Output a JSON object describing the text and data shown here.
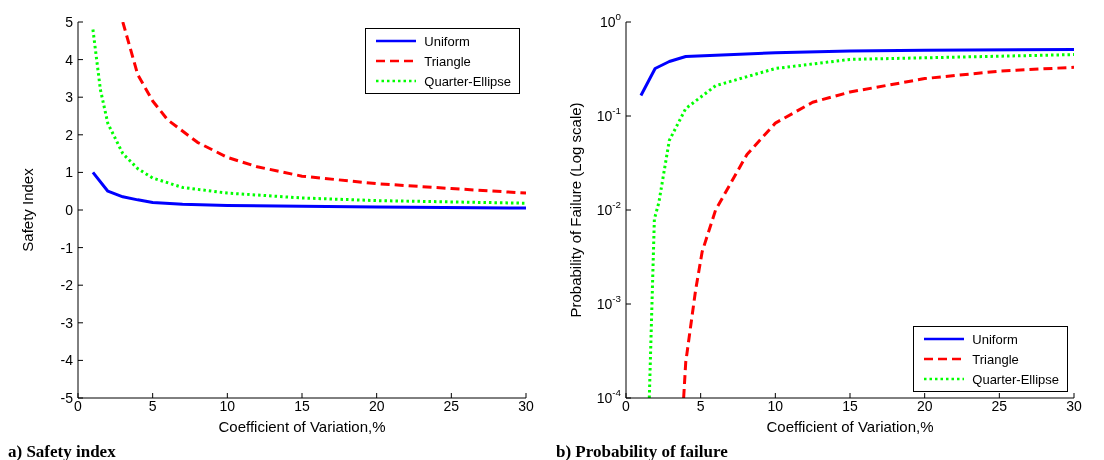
{
  "chart_data": [
    {
      "type": "line",
      "title": "a) Safety index",
      "xlabel": "Coefficient of Variation,%",
      "ylabel": "Safety Index",
      "xlim": [
        0,
        30
      ],
      "xticks": [
        0,
        5,
        10,
        15,
        20,
        25,
        30
      ],
      "ylim": [
        -5,
        5
      ],
      "yticks": [
        -5,
        -4,
        -3,
        -2,
        -1,
        0,
        1,
        2,
        3,
        4,
        5
      ],
      "grid": false,
      "legend": "top right",
      "series": [
        {
          "name": "Uniform",
          "color": "#0000ff",
          "line_style": "solid",
          "x": [
            1,
            2,
            3,
            4,
            5,
            7,
            10,
            15,
            20,
            30
          ],
          "values": [
            1.0,
            0.5,
            0.35,
            0.27,
            0.2,
            0.15,
            0.12,
            0.1,
            0.08,
            0.05
          ]
        },
        {
          "name": "Triangle",
          "color": "#ff0000",
          "line_style": "dashed",
          "x": [
            3,
            4,
            5,
            6,
            8,
            10,
            12,
            15,
            20,
            25,
            30
          ],
          "values": [
            5,
            3.6,
            2.9,
            2.4,
            1.8,
            1.4,
            1.15,
            0.9,
            0.7,
            0.57,
            0.45
          ]
        },
        {
          "name": "Quarter-Ellipse",
          "color": "#00ff00",
          "line_style": "dotted",
          "x": [
            1,
            1.5,
            2,
            3,
            4,
            5,
            7,
            10,
            15,
            20,
            30
          ],
          "values": [
            4.8,
            3.2,
            2.3,
            1.5,
            1.1,
            0.85,
            0.6,
            0.45,
            0.32,
            0.25,
            0.18
          ]
        }
      ]
    },
    {
      "type": "line",
      "title": "b) Probability of failure",
      "xlabel": "Coefficient of Variation,%",
      "ylabel": "Probability of Failure (Log scale)",
      "xlim": [
        0,
        30
      ],
      "xticks": [
        0,
        5,
        10,
        15,
        20,
        25,
        30
      ],
      "ylim": [
        0.0001,
        1
      ],
      "yticks": [
        {
          "value": 0.0001,
          "label": "10$^{-4}$"
        },
        {
          "value": 0.001,
          "label": "10$^{-3}$"
        },
        {
          "value": 0.01,
          "label": "10$^{-2}$"
        },
        {
          "value": 0.1,
          "label": "10$^{-1}$"
        },
        {
          "value": 1,
          "label": "10$^{0}$"
        }
      ],
      "log": "y",
      "grid": false,
      "legend": "bottom right",
      "series": [
        {
          "name": "Uniform",
          "color": "#0000ff",
          "line_style": "solid",
          "x": [
            1,
            1.95,
            2.9,
            4,
            10,
            15,
            20,
            30
          ],
          "values": [
            0.165,
            0.32,
            0.38,
            0.43,
            0.47,
            0.49,
            0.5,
            0.51
          ]
        },
        {
          "name": "Triangle",
          "color": "#ff0000",
          "line_style": "dashed",
          "x": [
            3.86,
            4,
            4.66,
            5.1,
            6,
            8.1,
            10,
            12.5,
            15,
            20,
            25,
            30
          ],
          "values": [
            0.0001,
            0.00024,
            0.0014,
            0.0036,
            0.01,
            0.039,
            0.084,
            0.14,
            0.18,
            0.25,
            0.3,
            0.33
          ]
        },
        {
          "name": "Quarter-Ellipse",
          "color": "#00ff00",
          "line_style": "dotted",
          "x": [
            1.56,
            1.9,
            2.2,
            2.9,
            4,
            6,
            10,
            15,
            30
          ],
          "values": [
            0.0001,
            0.008,
            0.012,
            0.055,
            0.12,
            0.21,
            0.32,
            0.4,
            0.45
          ]
        }
      ]
    }
  ]
}
